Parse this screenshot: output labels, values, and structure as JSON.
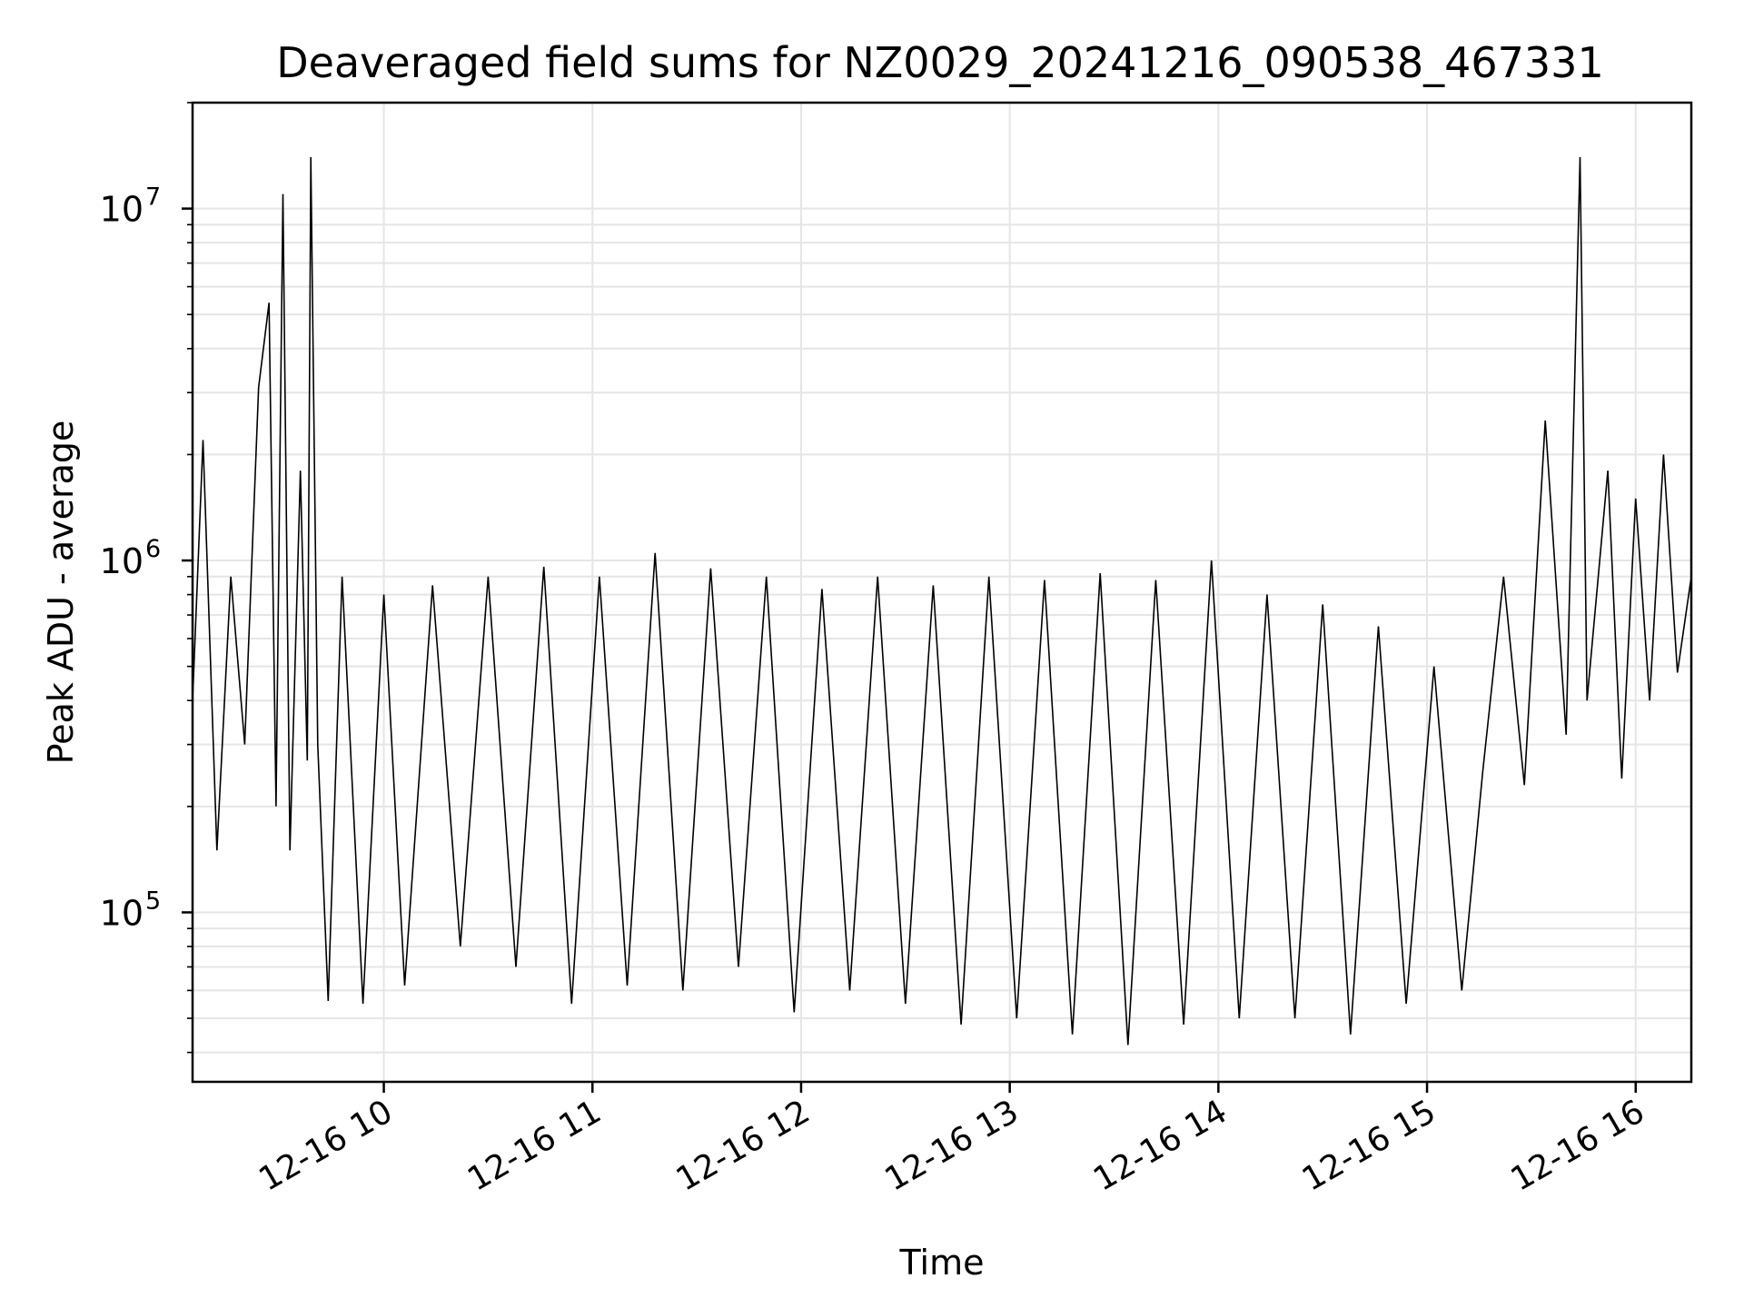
{
  "chart_data": {
    "type": "line",
    "title": "Deaveraged field sums for NZ0029_20241216_090538_467331",
    "xlabel": "Time",
    "ylabel": "Peak ADU - average",
    "yscale": "log",
    "ylim": [
      33000,
      20000000
    ],
    "xlim": [
      "2024-12-16 09:05",
      "2024-12-16 16:16"
    ],
    "grid": true,
    "line_color": "#000000",
    "grid_color": "#e5e5e5",
    "x_ticks": [
      {
        "t": "2024-12-16 10:00",
        "label": "12-16 10"
      },
      {
        "t": "2024-12-16 11:00",
        "label": "12-16 11"
      },
      {
        "t": "2024-12-16 12:00",
        "label": "12-16 12"
      },
      {
        "t": "2024-12-16 13:00",
        "label": "12-16 13"
      },
      {
        "t": "2024-12-16 14:00",
        "label": "12-16 14"
      },
      {
        "t": "2024-12-16 15:00",
        "label": "12-16 15"
      },
      {
        "t": "2024-12-16 16:00",
        "label": "12-16 16"
      }
    ],
    "y_ticks": [
      {
        "v": 100000,
        "base": "10",
        "exp": "5"
      },
      {
        "v": 1000000,
        "base": "10",
        "exp": "6"
      },
      {
        "v": 10000000,
        "base": "10",
        "exp": "7"
      }
    ],
    "series": [
      {
        "values": [
          [
            "2024-12-16 09:05",
            400000
          ],
          [
            "2024-12-16 09:08",
            2200000
          ],
          [
            "2024-12-16 09:12",
            150000
          ],
          [
            "2024-12-16 09:16",
            900000
          ],
          [
            "2024-12-16 09:20",
            300000
          ],
          [
            "2024-12-16 09:24",
            3100000
          ],
          [
            "2024-12-16 09:27",
            5400000
          ],
          [
            "2024-12-16 09:29",
            200000
          ],
          [
            "2024-12-16 09:31",
            11000000
          ],
          [
            "2024-12-16 09:33",
            150000
          ],
          [
            "2024-12-16 09:36",
            1800000
          ],
          [
            "2024-12-16 09:38",
            270000
          ],
          [
            "2024-12-16 09:39",
            14000000
          ],
          [
            "2024-12-16 09:41",
            300000
          ],
          [
            "2024-12-16 09:44",
            56000
          ],
          [
            "2024-12-16 09:48",
            900000
          ],
          [
            "2024-12-16 09:54",
            55000
          ],
          [
            "2024-12-16 10:00",
            800000
          ],
          [
            "2024-12-16 10:06",
            62000
          ],
          [
            "2024-12-16 10:14",
            850000
          ],
          [
            "2024-12-16 10:22",
            80000
          ],
          [
            "2024-12-16 10:30",
            900000
          ],
          [
            "2024-12-16 10:38",
            70000
          ],
          [
            "2024-12-16 10:46",
            960000
          ],
          [
            "2024-12-16 10:54",
            55000
          ],
          [
            "2024-12-16 11:02",
            900000
          ],
          [
            "2024-12-16 11:10",
            62000
          ],
          [
            "2024-12-16 11:18",
            1050000
          ],
          [
            "2024-12-16 11:26",
            60000
          ],
          [
            "2024-12-16 11:34",
            950000
          ],
          [
            "2024-12-16 11:42",
            70000
          ],
          [
            "2024-12-16 11:50",
            900000
          ],
          [
            "2024-12-16 11:58",
            52000
          ],
          [
            "2024-12-16 12:06",
            830000
          ],
          [
            "2024-12-16 12:14",
            60000
          ],
          [
            "2024-12-16 12:22",
            900000
          ],
          [
            "2024-12-16 12:30",
            55000
          ],
          [
            "2024-12-16 12:38",
            850000
          ],
          [
            "2024-12-16 12:46",
            48000
          ],
          [
            "2024-12-16 12:54",
            900000
          ],
          [
            "2024-12-16 13:02",
            50000
          ],
          [
            "2024-12-16 13:10",
            880000
          ],
          [
            "2024-12-16 13:18",
            45000
          ],
          [
            "2024-12-16 13:26",
            920000
          ],
          [
            "2024-12-16 13:34",
            42000
          ],
          [
            "2024-12-16 13:42",
            880000
          ],
          [
            "2024-12-16 13:50",
            48000
          ],
          [
            "2024-12-16 13:58",
            1000000
          ],
          [
            "2024-12-16 14:06",
            50000
          ],
          [
            "2024-12-16 14:14",
            800000
          ],
          [
            "2024-12-16 14:22",
            50000
          ],
          [
            "2024-12-16 14:30",
            750000
          ],
          [
            "2024-12-16 14:38",
            45000
          ],
          [
            "2024-12-16 14:46",
            650000
          ],
          [
            "2024-12-16 14:54",
            55000
          ],
          [
            "2024-12-16 15:02",
            500000
          ],
          [
            "2024-12-16 15:10",
            60000
          ],
          [
            "2024-12-16 15:16",
            250000
          ],
          [
            "2024-12-16 15:22",
            900000
          ],
          [
            "2024-12-16 15:28",
            230000
          ],
          [
            "2024-12-16 15:34",
            2500000
          ],
          [
            "2024-12-16 15:40",
            320000
          ],
          [
            "2024-12-16 15:44",
            14000000
          ],
          [
            "2024-12-16 15:46",
            400000
          ],
          [
            "2024-12-16 15:52",
            1800000
          ],
          [
            "2024-12-16 15:56",
            240000
          ],
          [
            "2024-12-16 16:00",
            1500000
          ],
          [
            "2024-12-16 16:04",
            400000
          ],
          [
            "2024-12-16 16:08",
            2000000
          ],
          [
            "2024-12-16 16:12",
            480000
          ],
          [
            "2024-12-16 16:16",
            900000
          ]
        ]
      }
    ]
  }
}
